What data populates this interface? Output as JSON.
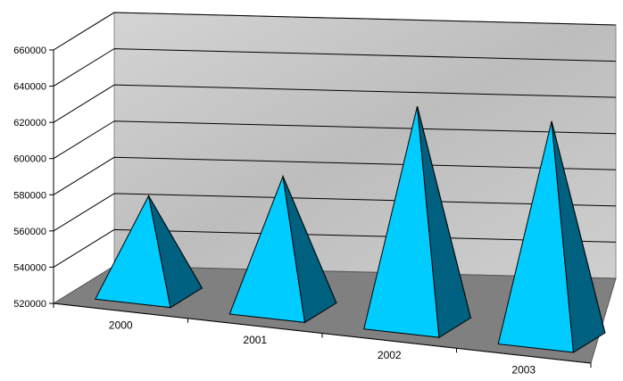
{
  "chart_data": {
    "type": "bar",
    "bar_shape": "3d-pyramid",
    "categories": [
      "2000",
      "2001",
      "2002",
      "2003"
    ],
    "values": [
      574000,
      593000,
      640000,
      640000
    ],
    "ylim": [
      520000,
      660000
    ],
    "yticks": [
      "520000",
      "540000",
      "560000",
      "580000",
      "600000",
      "620000",
      "640000",
      "660000"
    ],
    "grid": true,
    "legend": "none",
    "colors": {
      "pyramid_light": "#00ccff",
      "pyramid_dark": "#006080",
      "wall": "#c8c8c8",
      "floor": "#808080"
    }
  }
}
